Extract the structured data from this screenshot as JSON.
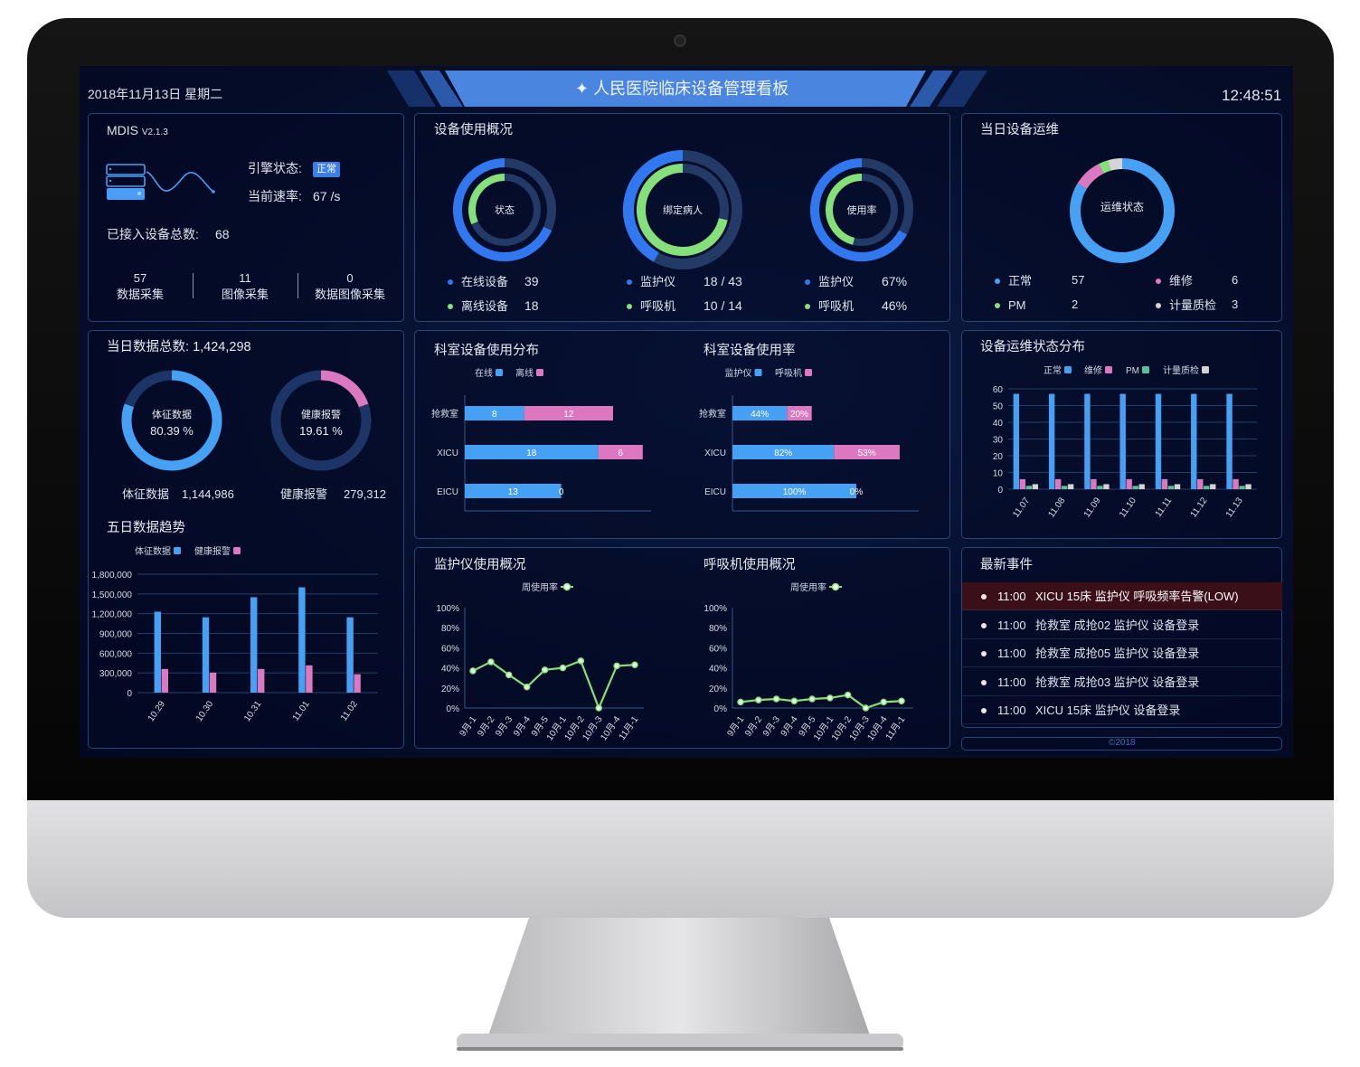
{
  "header": {
    "date": "2018年11月13日 星期二",
    "title": "人民医院临床设备管理看板",
    "time": "12:48:51",
    "title_icon": "sparkle-icon",
    "banner_color": "#4a86e0"
  },
  "mdis": {
    "name": "MDIS",
    "version": "V2.1.3",
    "engine_label": "引擎状态:",
    "engine_status": "正常",
    "rate_label": "当前速率:",
    "rate": "67 /s",
    "total_label": "已接入设备总数:",
    "total": "68",
    "stats": [
      {
        "value": "57",
        "label": "数据采集"
      },
      {
        "value": "11",
        "label": "图像采集"
      },
      {
        "value": "0",
        "label": "数据图像采集"
      }
    ]
  },
  "usage": {
    "title": "设备使用概况",
    "donuts": [
      {
        "center": "状态",
        "outer_fraction": 0.684,
        "inner_fraction": 0.316,
        "rows": [
          {
            "label": "在线设备",
            "value": "39"
          },
          {
            "label": "离线设备",
            "value": "18"
          }
        ]
      },
      {
        "center": "绑定病人",
        "outer_fraction": 0.419,
        "inner_fraction": 0.714,
        "rows": [
          {
            "label": "监护仪",
            "value": "18 / 43"
          },
          {
            "label": "呼吸机",
            "value": "10 / 14"
          }
        ]
      },
      {
        "center": "使用率",
        "outer_fraction": 0.67,
        "inner_fraction": 0.46,
        "rows": [
          {
            "label": "监护仪",
            "value": "67%"
          },
          {
            "label": "呼吸机",
            "value": "46%"
          }
        ]
      }
    ]
  },
  "maintenance": {
    "title": "当日设备运维",
    "center": "运维状态",
    "items": [
      {
        "label": "正常",
        "value": "57",
        "color": "#46a1f5"
      },
      {
        "label": "维修",
        "value": "6",
        "color": "#dc78c0"
      },
      {
        "label": "PM",
        "value": "2",
        "color": "#86e07a"
      },
      {
        "label": "计量质检",
        "value": "3",
        "color": "#d4d4d4"
      }
    ]
  },
  "daily": {
    "title_label": "当日数据总数:",
    "total": "1,424,298",
    "donuts": [
      {
        "name": "体征数据",
        "percent": "80.39 %",
        "fraction": 0.8039,
        "color": "#46a1f5",
        "value": "1,144,986"
      },
      {
        "name": "健康报警",
        "percent": "19.61 %",
        "fraction": 0.1961,
        "color": "#dc78c0",
        "value": "279,312"
      }
    ]
  },
  "events": {
    "title": "最新事件",
    "items": [
      {
        "time": "11:00",
        "text": "XICU 15床 监护仪 呼吸频率告警(LOW)",
        "alert": true
      },
      {
        "time": "11:00",
        "text": "抢救室 成抢02 监护仪 设备登录",
        "alert": false
      },
      {
        "time": "11:00",
        "text": "抢救室 成抢05 监护仪 设备登录",
        "alert": false
      },
      {
        "time": "11:00",
        "text": "抢救室 成抢03 监护仪 设备登录",
        "alert": false
      },
      {
        "time": "11:00",
        "text": "XICU 15床 监护仪 设备登录",
        "alert": false
      }
    ]
  },
  "footer": {
    "copyright": "©2018"
  },
  "colors": {
    "blue": "#46a1f5",
    "pink": "#dc78c0",
    "green": "#86e07a",
    "teal": "#56c29a",
    "gray": "#d4d4d4",
    "track": "#243a66"
  },
  "chart_data": [
    {
      "type": "bar",
      "title": "五日数据趋势",
      "categories": [
        "10.29",
        "10.30",
        "10.31",
        "11.01",
        "11.02"
      ],
      "series": [
        {
          "name": "体征数据",
          "values": [
            1230000,
            1145000,
            1450000,
            1600000,
            1145000
          ]
        },
        {
          "name": "健康报警",
          "values": [
            360000,
            305000,
            360000,
            415000,
            280000
          ]
        }
      ],
      "ylim": [
        0,
        1800000
      ],
      "yticks": [
        "0",
        "300,000",
        "600,000",
        "900,000",
        "1,200,000",
        "1,500,000",
        "1,800,000"
      ],
      "grid": true,
      "legend": "top-center"
    },
    {
      "type": "bar",
      "orientation": "horizontal",
      "stacked": true,
      "title": "科室设备使用分布",
      "categories": [
        "抢救室",
        "XICU",
        "EICU"
      ],
      "series": [
        {
          "name": "在线",
          "values": [
            8,
            18,
            13
          ],
          "labels": [
            "8",
            "18",
            "13"
          ]
        },
        {
          "name": "离线",
          "values": [
            12,
            6,
            0
          ],
          "labels": [
            "12",
            "6",
            "0"
          ]
        }
      ],
      "legend": "top-center"
    },
    {
      "type": "bar",
      "orientation": "horizontal",
      "stacked": true,
      "title": "科室设备使用率",
      "categories": [
        "抢救室",
        "XICU",
        "EICU"
      ],
      "series": [
        {
          "name": "监护仪",
          "values": [
            44,
            82,
            100
          ],
          "labels": [
            "44%",
            "82%",
            "100%"
          ]
        },
        {
          "name": "呼吸机",
          "values": [
            20,
            53,
            0
          ],
          "labels": [
            "20%",
            "53%",
            "0%"
          ]
        }
      ],
      "legend": "top-center"
    },
    {
      "type": "bar",
      "title": "设备运维状态分布",
      "categories": [
        "11.07",
        "11.08",
        "11.09",
        "11.10",
        "11.11",
        "11.12",
        "11.13"
      ],
      "series": [
        {
          "name": "正常",
          "values": [
            57,
            57,
            57,
            57,
            57,
            57,
            57
          ]
        },
        {
          "name": "维修",
          "values": [
            6,
            6,
            6,
            6,
            6,
            6,
            6
          ]
        },
        {
          "name": "PM",
          "values": [
            2,
            2,
            2,
            2,
            2,
            2,
            2
          ]
        },
        {
          "name": "计量质检",
          "values": [
            3,
            3,
            3,
            3,
            3,
            3,
            3
          ]
        }
      ],
      "ylim": [
        0,
        60
      ],
      "yticks": [
        "0",
        "10",
        "20",
        "30",
        "40",
        "50",
        "60"
      ],
      "grid": true,
      "legend": "top-center"
    },
    {
      "type": "line",
      "title": "监护仪使用概况",
      "categories": [
        "9月-1",
        "9月-2",
        "9月-3",
        "9月-4",
        "9月-5",
        "10月-1",
        "10月-2",
        "10月-3",
        "10月-4",
        "11月-1"
      ],
      "series": [
        {
          "name": "周使用率",
          "values": [
            37,
            46,
            33,
            21,
            38,
            40,
            47,
            0,
            42,
            43
          ]
        }
      ],
      "ylim": [
        0,
        100
      ],
      "yticks": [
        "0%",
        "20%",
        "40%",
        "60%",
        "80%",
        "100%"
      ],
      "legend": "top-center"
    },
    {
      "type": "line",
      "title": "呼吸机使用概况",
      "categories": [
        "9月-1",
        "9月-2",
        "9月-3",
        "9月-4",
        "9月-5",
        "10月-1",
        "10月-2",
        "10月-3",
        "10月-4",
        "11月-1"
      ],
      "series": [
        {
          "name": "周使用率",
          "values": [
            6,
            8,
            9,
            7,
            9,
            10,
            13,
            0,
            6,
            7
          ]
        }
      ],
      "ylim": [
        0,
        100
      ],
      "yticks": [
        "0%",
        "20%",
        "40%",
        "60%",
        "80%",
        "100%"
      ],
      "legend": "top-center"
    }
  ]
}
